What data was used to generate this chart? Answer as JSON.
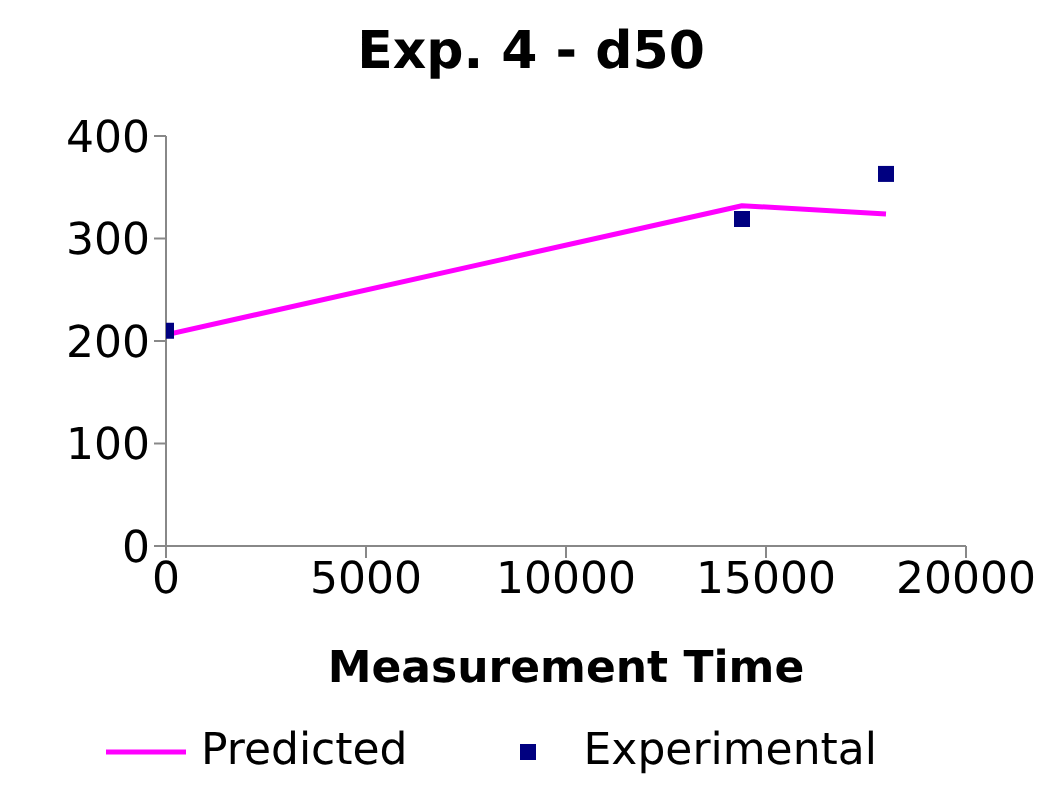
{
  "chart_data": {
    "type": "line",
    "title": "Exp. 4 - d50",
    "xlabel": "Measurement Time",
    "xlim": [
      0,
      20000
    ],
    "xticks": [
      0,
      5000,
      10000,
      15000,
      20000
    ],
    "ylim": [
      0,
      400
    ],
    "yticks": [
      0,
      100,
      200,
      300,
      400
    ],
    "grid": false,
    "legend": "bottom",
    "series": [
      {
        "name": "Predicted",
        "color": "#ff00ff",
        "x": [
          0,
          14400,
          18000
        ],
        "values": [
          206,
          332,
          324
        ],
        "marker": "none"
      },
      {
        "name": "Experimental",
        "type": "scatter",
        "color": "#000080",
        "x": [
          0,
          14400,
          18000
        ],
        "values": [
          210,
          319,
          363
        ],
        "marker": "square"
      }
    ]
  }
}
